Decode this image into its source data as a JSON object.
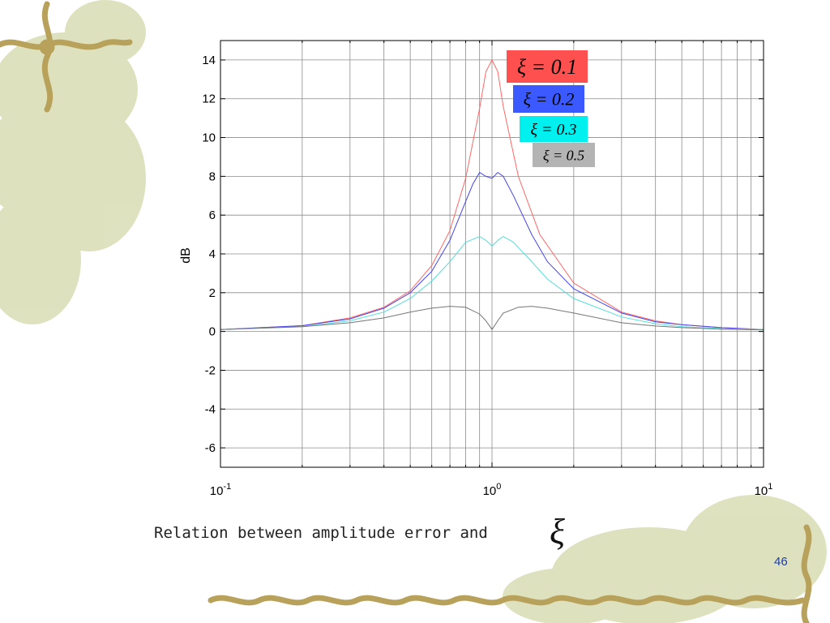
{
  "slide": {
    "caption": "Relation between amplitude error and",
    "caption_symbol": "ξ",
    "page_number": "46"
  },
  "colors": {
    "background": "#ffffff",
    "decor_green": "#cfd3a0",
    "vine_brown": "#b8a15a",
    "page_number": "#1f3f9f"
  },
  "chart_data": {
    "type": "line",
    "title": "",
    "xlabel": "",
    "ylabel": "dB",
    "xscale": "log",
    "xlim": [
      0.1,
      10
    ],
    "ylim": [
      -7,
      15
    ],
    "x_ticks": [
      {
        "value": 0.1,
        "base": "10",
        "exp": "-1"
      },
      {
        "value": 1,
        "base": "10",
        "exp": "0"
      },
      {
        "value": 10,
        "base": "10",
        "exp": "1"
      }
    ],
    "y_ticks": [
      -6,
      -4,
      -2,
      0,
      2,
      4,
      6,
      8,
      10,
      12,
      14
    ],
    "grid": true,
    "legend_position": "top-right",
    "series": [
      {
        "name": "ξ = 0.1",
        "color": "#ff6666",
        "legend_bg": "#ff5050",
        "legend_color": "#000000",
        "x": [
          0.1,
          0.2,
          0.3,
          0.4,
          0.5,
          0.6,
          0.7,
          0.8,
          0.9,
          0.95,
          1.0,
          1.05,
          1.1,
          1.25,
          1.5,
          2,
          3,
          4,
          5,
          7,
          10
        ],
        "values": [
          0.1,
          0.3,
          0.7,
          1.25,
          2.1,
          3.4,
          5.2,
          7.9,
          11.5,
          13.4,
          14.0,
          13.4,
          11.6,
          8.0,
          5.0,
          2.5,
          1.0,
          0.55,
          0.35,
          0.2,
          0.1
        ]
      },
      {
        "name": "ξ = 0.2",
        "color": "#4444ee",
        "legend_bg": "#3a5aff",
        "legend_color": "#000000",
        "x": [
          0.1,
          0.2,
          0.3,
          0.4,
          0.5,
          0.6,
          0.7,
          0.8,
          0.85,
          0.9,
          0.95,
          1.0,
          1.05,
          1.1,
          1.2,
          1.4,
          1.6,
          2,
          3,
          4,
          5,
          7,
          10
        ],
        "values": [
          0.1,
          0.3,
          0.65,
          1.2,
          2.0,
          3.1,
          4.7,
          6.7,
          7.6,
          8.2,
          8.0,
          7.9,
          8.2,
          8.0,
          7.0,
          5.0,
          3.6,
          2.2,
          0.95,
          0.5,
          0.35,
          0.2,
          0.1
        ]
      },
      {
        "name": "ξ = 0.3",
        "color": "#55dddd",
        "legend_bg": "#00f0f0",
        "legend_color": "#000000",
        "x": [
          0.1,
          0.2,
          0.3,
          0.4,
          0.5,
          0.6,
          0.7,
          0.8,
          0.9,
          0.95,
          1.0,
          1.05,
          1.1,
          1.2,
          1.4,
          1.6,
          2,
          3,
          4,
          5,
          7,
          10
        ],
        "values": [
          0.1,
          0.25,
          0.55,
          1.0,
          1.7,
          2.6,
          3.6,
          4.6,
          4.9,
          4.7,
          4.4,
          4.7,
          4.9,
          4.6,
          3.6,
          2.7,
          1.7,
          0.75,
          0.4,
          0.25,
          0.15,
          0.1
        ]
      },
      {
        "name": "ξ = 0.5",
        "color": "#777777",
        "legend_bg": "#b4b4b4",
        "legend_color": "#000000",
        "x": [
          0.1,
          0.2,
          0.3,
          0.4,
          0.5,
          0.6,
          0.7,
          0.8,
          0.9,
          0.95,
          1.0,
          1.05,
          1.1,
          1.25,
          1.4,
          1.6,
          2,
          3,
          4,
          5,
          7,
          10
        ],
        "values": [
          0.1,
          0.25,
          0.45,
          0.7,
          1.0,
          1.2,
          1.3,
          1.25,
          0.9,
          0.55,
          0.1,
          0.55,
          0.95,
          1.25,
          1.3,
          1.2,
          0.95,
          0.45,
          0.28,
          0.2,
          0.12,
          0.08
        ]
      }
    ]
  }
}
